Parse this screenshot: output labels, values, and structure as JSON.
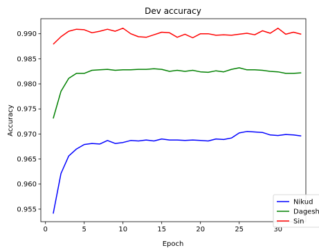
{
  "chart_data": {
    "type": "line",
    "title": "Dev accuracy",
    "xlabel": "Epoch",
    "ylabel": "Accuracy",
    "xlim": [
      -0.6,
      33.6
    ],
    "ylim": [
      0.9525,
      0.993
    ],
    "xticks": [
      0,
      5,
      10,
      15,
      20,
      25,
      30
    ],
    "yticks": [
      0.955,
      0.96,
      0.965,
      0.97,
      0.975,
      0.98,
      0.985,
      0.99
    ],
    "ytick_labels": [
      "0.955",
      "0.960",
      "0.965",
      "0.970",
      "0.975",
      "0.980",
      "0.985",
      "0.990"
    ],
    "grid": false,
    "legend_position": "lower-right",
    "x": [
      1,
      2,
      3,
      4,
      5,
      6,
      7,
      8,
      9,
      10,
      11,
      12,
      13,
      14,
      15,
      16,
      17,
      18,
      19,
      20,
      21,
      22,
      23,
      24,
      25,
      26,
      27,
      28,
      29,
      30,
      31,
      32,
      33
    ],
    "series": [
      {
        "name": "Nikud",
        "color": "#0000ff",
        "values": [
          0.9541,
          0.9621,
          0.9656,
          0.967,
          0.9679,
          0.9681,
          0.968,
          0.9687,
          0.9681,
          0.9683,
          0.9687,
          0.9686,
          0.9688,
          0.9686,
          0.969,
          0.9688,
          0.9688,
          0.9687,
          0.9688,
          0.9687,
          0.9686,
          0.969,
          0.9689,
          0.9692,
          0.9702,
          0.9705,
          0.9704,
          0.9703,
          0.9698,
          0.9697,
          0.9699,
          0.9698,
          0.9696
        ]
      },
      {
        "name": "Dagesh",
        "color": "#008000",
        "values": [
          0.9731,
          0.9785,
          0.9811,
          0.9821,
          0.9821,
          0.9827,
          0.9828,
          0.9829,
          0.9827,
          0.9828,
          0.9828,
          0.9829,
          0.9829,
          0.983,
          0.9829,
          0.9825,
          0.9827,
          0.9825,
          0.9827,
          0.9824,
          0.9823,
          0.9826,
          0.9824,
          0.9829,
          0.9832,
          0.9828,
          0.9828,
          0.9827,
          0.9825,
          0.9824,
          0.9821,
          0.9821,
          0.9822
        ]
      },
      {
        "name": "Sin",
        "color": "#ff0000",
        "values": [
          0.9879,
          0.9894,
          0.9905,
          0.9909,
          0.9908,
          0.9902,
          0.9905,
          0.9909,
          0.9905,
          0.9911,
          0.99,
          0.9894,
          0.9893,
          0.9898,
          0.9903,
          0.9902,
          0.9893,
          0.9899,
          0.9892,
          0.99,
          0.99,
          0.9897,
          0.9898,
          0.9897,
          0.9899,
          0.9901,
          0.9898,
          0.9906,
          0.9901,
          0.9911,
          0.9899,
          0.9903,
          0.9899
        ]
      }
    ]
  }
}
